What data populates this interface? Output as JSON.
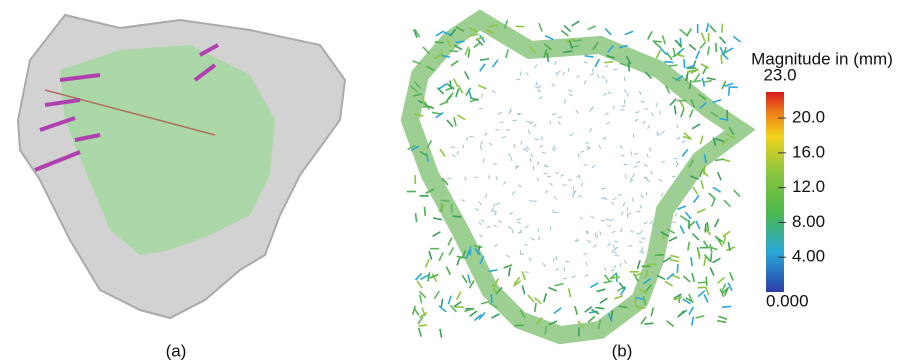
{
  "panels": [
    {
      "label": "(a)"
    },
    {
      "label": "(b)"
    }
  ],
  "colorbar": {
    "title": "Magnitude in (mm)",
    "max": {
      "value": 23,
      "label": "23.0"
    },
    "min": {
      "value": 0,
      "label": "0.000"
    },
    "ticks": [
      {
        "value": 20,
        "label": "20.0"
      },
      {
        "value": 16,
        "label": "16.0"
      },
      {
        "value": 12,
        "label": "12.0"
      },
      {
        "value": 8,
        "label": "8.00"
      },
      {
        "value": 4,
        "label": "4.00"
      }
    ]
  }
}
